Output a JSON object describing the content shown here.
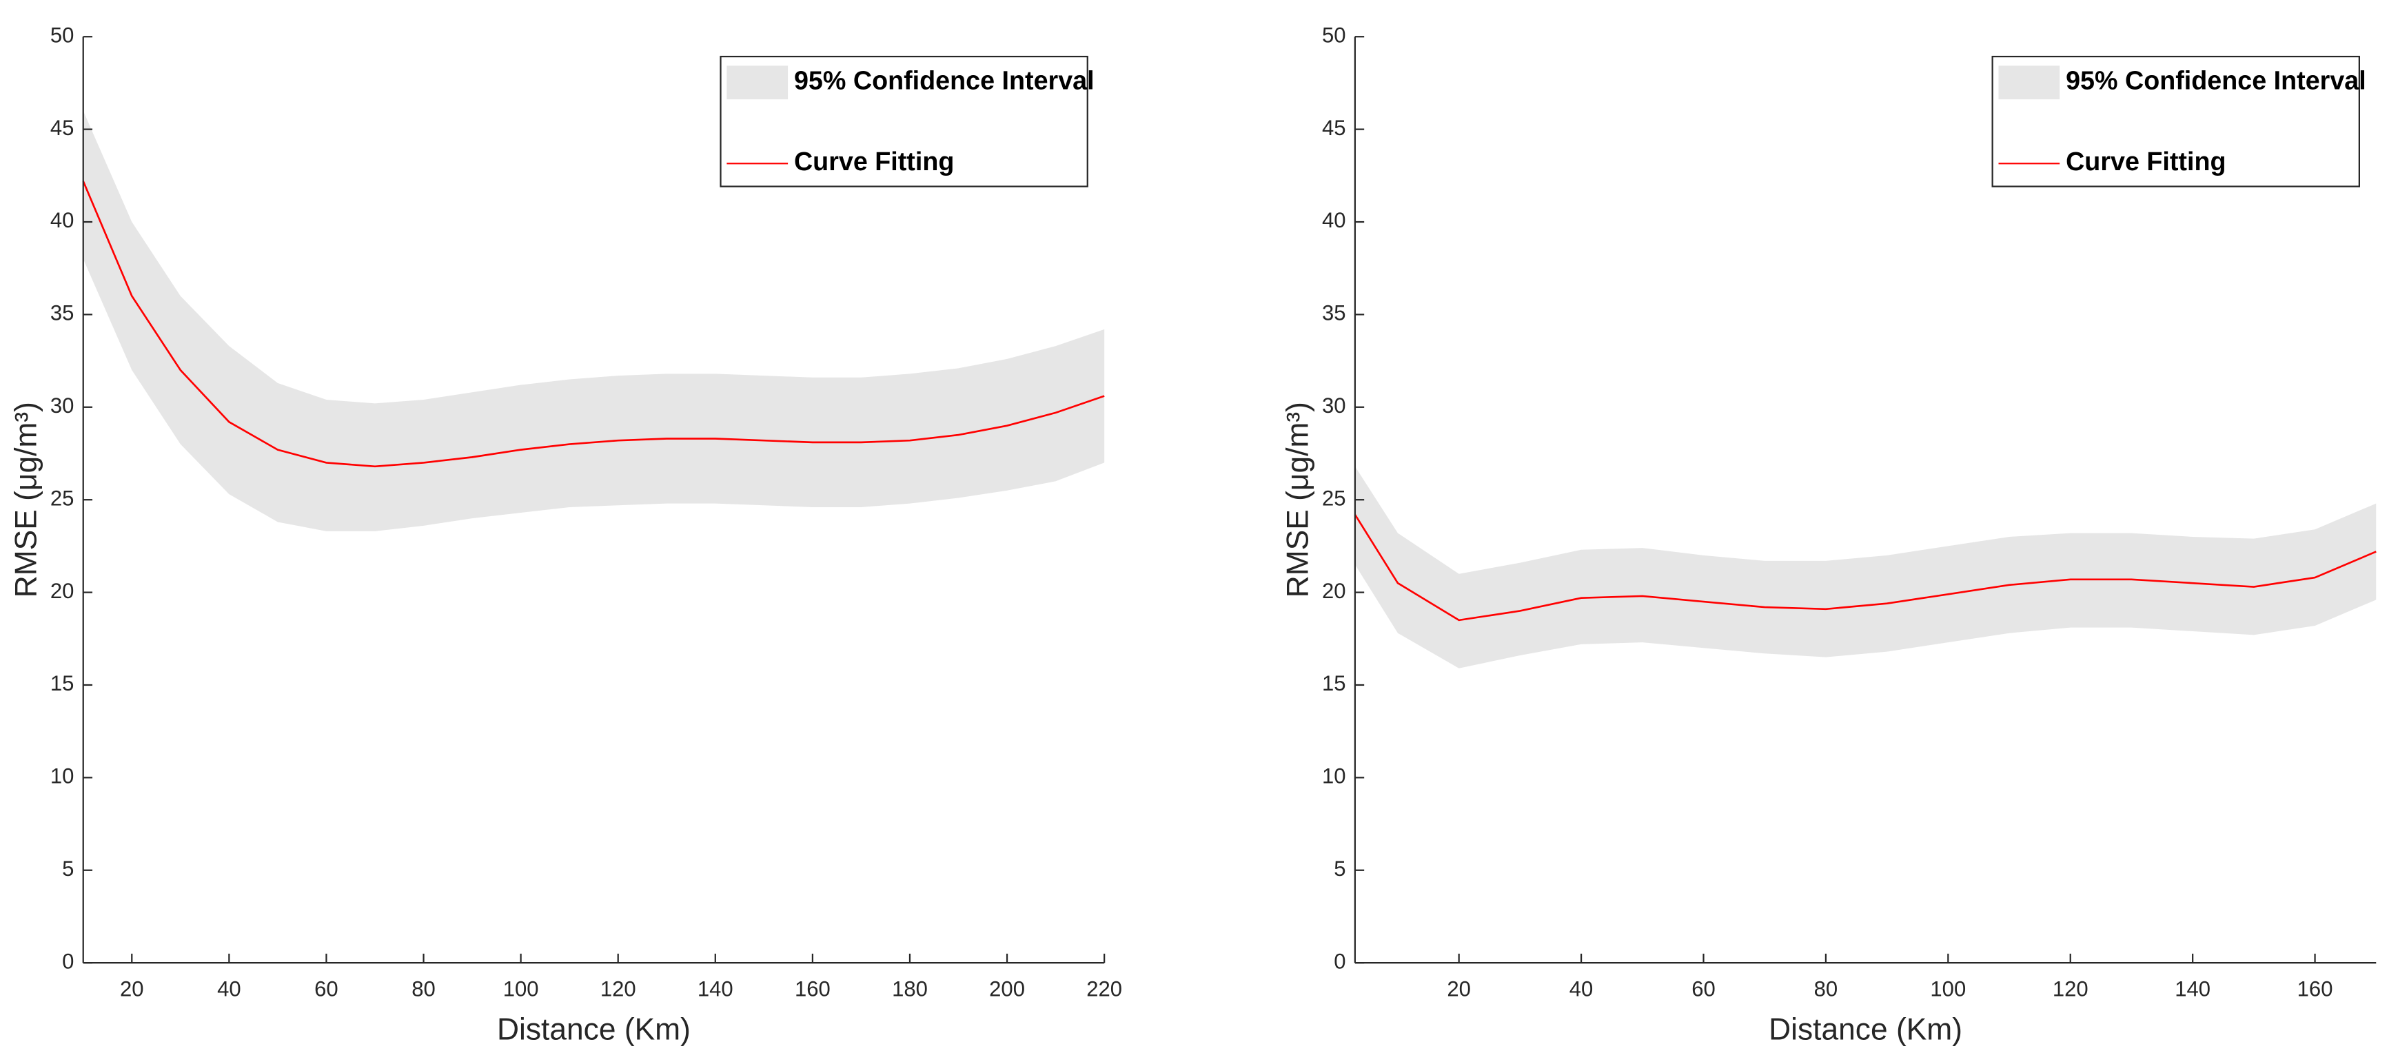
{
  "chart_data": [
    {
      "type": "line",
      "x_label": "Distance (Km)",
      "y_label": "RMSE (μg/m³)",
      "x": [
        10,
        20,
        30,
        40,
        50,
        60,
        70,
        80,
        90,
        100,
        110,
        120,
        130,
        140,
        150,
        160,
        170,
        180,
        190,
        200,
        210,
        220
      ],
      "series": [
        {
          "name": "95% Confidence Interval",
          "color": "#e6e6e6",
          "lower": [
            38,
            32,
            28,
            25.3,
            23.8,
            23.3,
            23.3,
            23.6,
            24,
            24.3,
            24.6,
            24.7,
            24.8,
            24.8,
            24.7,
            24.6,
            24.6,
            24.8,
            25.1,
            25.5,
            26,
            27
          ],
          "upper": [
            46,
            40,
            36,
            33.3,
            31.3,
            30.4,
            30.2,
            30.4,
            30.8,
            31.2,
            31.5,
            31.7,
            31.8,
            31.8,
            31.7,
            31.6,
            31.6,
            31.8,
            32.1,
            32.6,
            33.3,
            34.2
          ]
        },
        {
          "name": "Curve Fitting",
          "color": "#ff0000",
          "values": [
            42.2,
            36,
            32,
            29.2,
            27.7,
            27,
            26.8,
            27,
            27.3,
            27.7,
            28,
            28.2,
            28.3,
            28.3,
            28.2,
            28.1,
            28.1,
            28.2,
            28.5,
            29,
            29.7,
            30.6
          ]
        }
      ],
      "xlim": [
        10,
        220
      ],
      "xticks": [
        20,
        40,
        60,
        80,
        100,
        120,
        140,
        160,
        180,
        200,
        220
      ],
      "ylim": [
        0,
        50
      ],
      "yticks": [
        0,
        5,
        10,
        15,
        20,
        25,
        30,
        35,
        40,
        45,
        50
      ],
      "legend": "upper right"
    },
    {
      "type": "line",
      "x_label": "Distance (Km)",
      "y_label": "RMSE (μg/m³)",
      "x": [
        3,
        10,
        20,
        30,
        40,
        50,
        60,
        70,
        80,
        90,
        100,
        110,
        120,
        130,
        140,
        150,
        160,
        170
      ],
      "series": [
        {
          "name": "95% Confidence Interval",
          "color": "#e6e6e6",
          "lower": [
            21.5,
            17.8,
            15.9,
            16.6,
            17.2,
            17.3,
            17,
            16.7,
            16.5,
            16.8,
            17.3,
            17.8,
            18.1,
            18.1,
            17.9,
            17.7,
            18.2,
            19.6
          ],
          "upper": [
            26.8,
            23.2,
            21,
            21.6,
            22.3,
            22.4,
            22,
            21.7,
            21.7,
            22,
            22.5,
            23,
            23.2,
            23.2,
            23,
            22.9,
            23.4,
            24.8
          ]
        },
        {
          "name": "Curve Fitting",
          "color": "#ff0000",
          "values": [
            24.2,
            20.5,
            18.5,
            19,
            19.7,
            19.8,
            19.5,
            19.2,
            19.1,
            19.4,
            19.9,
            20.4,
            20.7,
            20.7,
            20.5,
            20.3,
            20.8,
            22.2
          ]
        }
      ],
      "xlim": [
        3,
        170
      ],
      "xticks": [
        20,
        40,
        60,
        80,
        100,
        120,
        140,
        160
      ],
      "ylim": [
        0,
        50
      ],
      "yticks": [
        0,
        5,
        10,
        15,
        20,
        25,
        30,
        35,
        40,
        45,
        50
      ],
      "legend": "upper right"
    }
  ]
}
